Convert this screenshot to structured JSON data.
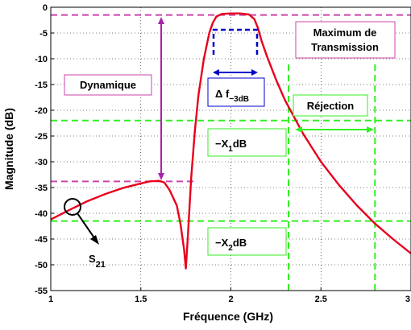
{
  "chart_data": {
    "type": "line",
    "xlabel": "Fréquence (GHz)",
    "ylabel": "Magnitude (dB)",
    "xlim": [
      1,
      3
    ],
    "ylim": [
      -55,
      0
    ],
    "grid": true,
    "x_ticks": [
      1,
      1.5,
      2,
      2.5,
      3
    ],
    "x_tick_labels": [
      "1",
      "1.5",
      "2",
      "2.5",
      "3"
    ],
    "y_ticks": [
      0,
      -5,
      -10,
      -15,
      -20,
      -25,
      -30,
      -35,
      -40,
      -45,
      -50,
      -55
    ],
    "y_tick_labels": [
      "0",
      "-5",
      "-10",
      "-15",
      "-20",
      "-25",
      "-30",
      "-35",
      "-40",
      "-45",
      "-50",
      "-55"
    ],
    "series": [
      {
        "color": "#e8001c",
        "x": [
          1.0,
          1.1,
          1.2,
          1.3,
          1.4,
          1.5,
          1.55,
          1.6,
          1.63,
          1.66,
          1.7,
          1.72,
          1.74,
          1.75,
          1.76,
          1.78,
          1.8,
          1.82,
          1.85,
          1.88,
          1.9,
          1.92,
          1.95,
          2.0,
          2.05,
          2.1,
          2.13,
          2.15,
          2.17,
          2.2,
          2.25,
          2.3,
          2.4,
          2.5,
          2.6,
          2.7,
          2.8,
          2.9,
          3.0
        ],
        "y": [
          -41.2,
          -39.4,
          -37.7,
          -36.3,
          -35.1,
          -34.2,
          -33.8,
          -33.7,
          -34.0,
          -35.5,
          -38.5,
          -42.0,
          -47.0,
          -50.7,
          -45.0,
          -33.0,
          -24.0,
          -17.0,
          -10.0,
          -5.0,
          -3.0,
          -1.8,
          -1.3,
          -1.2,
          -1.2,
          -1.4,
          -2.3,
          -4.0,
          -6.5,
          -9.5,
          -14.0,
          -18.0,
          -24.5,
          -30.0,
          -34.5,
          -38.5,
          -42.0,
          -45.0,
          -47.8
        ]
      }
    ],
    "reference_lines": [
      {
        "orientation": "horizontal",
        "y": -1.5,
        "x_from": 1.0,
        "x_to": 3.0,
        "color": "#cc44aa",
        "style": "dashed"
      },
      {
        "orientation": "horizontal",
        "y": -33.8,
        "x_from": 1.0,
        "x_to": 1.8,
        "color": "#cc44aa",
        "style": "dashed"
      },
      {
        "orientation": "horizontal",
        "y": -22.0,
        "x_from": 1.0,
        "x_to": 3.0,
        "color": "#33ee22",
        "style": "dashed"
      },
      {
        "orientation": "horizontal",
        "y": -41.5,
        "x_from": 1.0,
        "x_to": 3.0,
        "color": "#33ee22",
        "style": "dashed"
      },
      {
        "orientation": "vertical",
        "x": 2.32,
        "y_from": -55,
        "y_to": -11,
        "color": "#33ee22",
        "style": "dashed"
      },
      {
        "orientation": "vertical",
        "x": 2.8,
        "y_from": -55,
        "y_to": -11,
        "color": "#33ee22",
        "style": "dashed"
      }
    ],
    "annotations": {
      "max_transmission": [
        "Maximum de",
        "Transmission"
      ],
      "dynamique": "Dynamique",
      "delta_f_prefix": "Δ f",
      "delta_f_sub": "−3dB",
      "rejection": "Réjection",
      "x1_prefix": "−X",
      "x1_sub": "1",
      "x1_suffix": "dB",
      "x2_prefix": "−X",
      "x2_sub": "2",
      "x2_suffix": "dB",
      "s21_prefix": "S",
      "s21_sub": "21"
    },
    "colors": {
      "curve": "#e8001c",
      "magenta": "#cc44aa",
      "green": "#33ee22",
      "blue": "#0000cc",
      "arrow_magenta": "#aa22aa"
    }
  }
}
